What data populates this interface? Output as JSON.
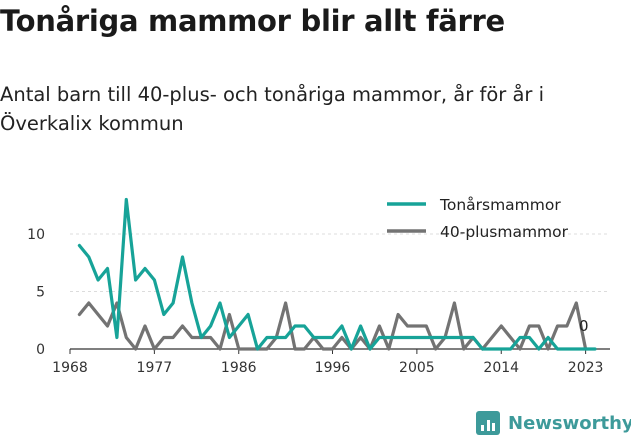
{
  "title": "Tonåriga mammor blir allt färre",
  "subtitle": "Antal barn till 40-plus- och tonåriga mammor, år för år i Överkalix kommun",
  "brand": {
    "name": "Newsworthy",
    "icon": "bar-chart-icon",
    "color": "#3d9a9a"
  },
  "chart_data": {
    "type": "line",
    "x": [
      1968,
      1969,
      1970,
      1971,
      1972,
      1973,
      1974,
      1975,
      1976,
      1977,
      1978,
      1979,
      1980,
      1981,
      1982,
      1983,
      1984,
      1985,
      1986,
      1987,
      1988,
      1989,
      1990,
      1991,
      1992,
      1993,
      1994,
      1995,
      1996,
      1997,
      1998,
      1999,
      2000,
      2001,
      2002,
      2003,
      2004,
      2005,
      2006,
      2007,
      2008,
      2009,
      2010,
      2011,
      2012,
      2013,
      2014,
      2015,
      2016,
      2017,
      2018,
      2019,
      2020,
      2021,
      2022,
      2023,
      2024
    ],
    "series": [
      {
        "name": "Tonårsmammor",
        "color": "#17a398",
        "values": [
          null,
          9,
          8,
          6,
          7,
          1,
          13,
          6,
          7,
          6,
          3,
          4,
          8,
          4,
          1,
          2,
          4,
          1,
          2,
          3,
          0,
          1,
          1,
          1,
          2,
          2,
          1,
          1,
          1,
          2,
          0,
          2,
          0,
          1,
          1,
          1,
          1,
          1,
          1,
          1,
          1,
          1,
          1,
          1,
          0,
          0,
          0,
          0,
          1,
          1,
          0,
          1,
          0,
          0,
          0,
          0,
          0
        ]
      },
      {
        "name": "40-plusmammor",
        "color": "#737373",
        "values": [
          null,
          3,
          4,
          3,
          2,
          4,
          1,
          0,
          2,
          0,
          1,
          1,
          2,
          1,
          1,
          1,
          0,
          3,
          0,
          0,
          0,
          0,
          1,
          4,
          0,
          0,
          1,
          0,
          0,
          1,
          0,
          1,
          0,
          2,
          0,
          3,
          2,
          2,
          2,
          0,
          1,
          4,
          0,
          1,
          0,
          1,
          2,
          1,
          0,
          2,
          2,
          0,
          2,
          2,
          4,
          0,
          null
        ]
      }
    ],
    "xticks": [
      1968,
      1977,
      1986,
      1996,
      2005,
      2014,
      2023
    ],
    "yticks": [
      0,
      5,
      10
    ],
    "xlim": [
      1968,
      2024
    ],
    "ylim": [
      0,
      13
    ],
    "end_label": "0",
    "legend_position": "top-right",
    "grid": "horizontal"
  }
}
